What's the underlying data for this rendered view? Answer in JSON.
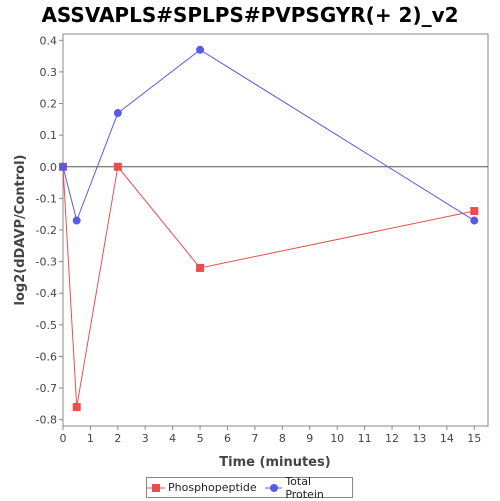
{
  "chart_data": {
    "type": "line",
    "title": "ASSVAPLS#SPLPS#PVPSGYR(+ 2)_v2",
    "xlabel": "Time (minutes)",
    "ylabel": "log2(dDAVP/Control)",
    "xlim": [
      0,
      15.5
    ],
    "ylim": [
      -0.82,
      0.42
    ],
    "xticks": [
      0,
      1,
      2,
      3,
      4,
      5,
      6,
      7,
      8,
      9,
      10,
      11,
      12,
      13,
      14,
      15
    ],
    "yticks": [
      -0.8,
      -0.7,
      -0.6,
      -0.5,
      -0.4,
      -0.3,
      -0.2,
      -0.1,
      0.0,
      0.1,
      0.2,
      0.3,
      0.4
    ],
    "ytick_labels": [
      "-0.8",
      "-0.7",
      "-0.6",
      "-0.5",
      "-0.4",
      "-0.3",
      "-0.2",
      "-0.1",
      "0.0",
      "0.1",
      "0.2",
      "0.3",
      "0.4"
    ],
    "zero_line": true,
    "grid": false,
    "legend_position": "bottom",
    "series": [
      {
        "name": "Phosphopeptide",
        "color": "#e8504f",
        "marker": "square",
        "x": [
          0,
          0.5,
          2,
          5,
          15
        ],
        "y": [
          0.0,
          -0.76,
          0.0,
          -0.32,
          -0.14
        ]
      },
      {
        "name": "Total Protein",
        "color": "#5a5ae8",
        "marker": "circle",
        "x": [
          0,
          0.5,
          2,
          5,
          15
        ],
        "y": [
          0.0,
          -0.17,
          0.17,
          0.37,
          -0.17
        ]
      }
    ]
  }
}
